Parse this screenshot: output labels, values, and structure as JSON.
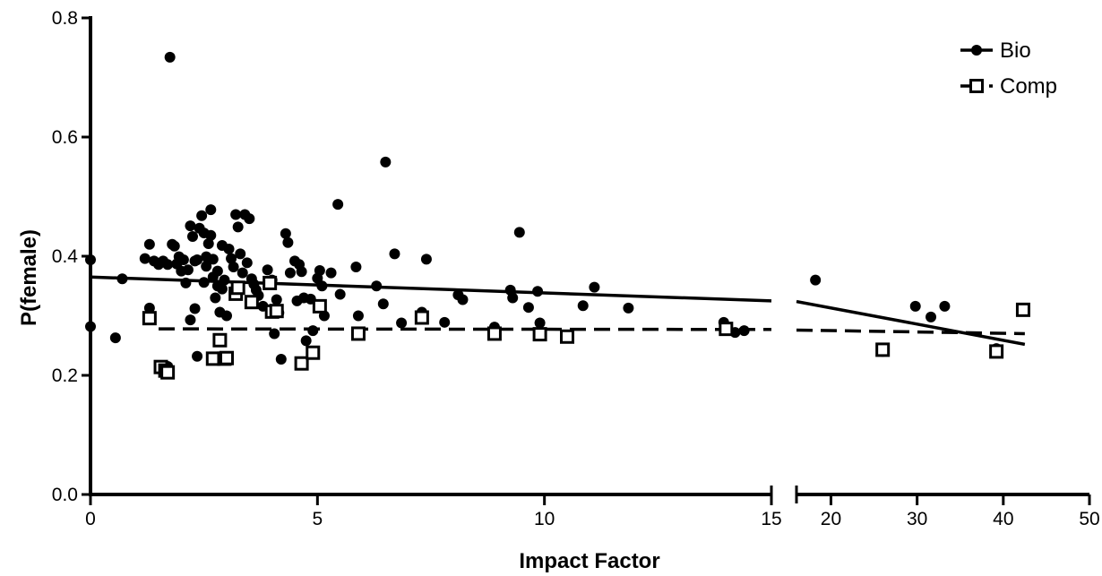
{
  "chart_data": {
    "type": "scatter",
    "xlabel": "Impact Factor",
    "ylabel": "P(female)",
    "ylim": [
      0,
      0.8
    ],
    "y_ticks": [
      "0.0",
      "0.2",
      "0.4",
      "0.6",
      "0.8"
    ],
    "x_axis_segments": [
      {
        "xlim": [
          0,
          15
        ],
        "ticks": [
          "0",
          "5",
          "10",
          "15"
        ]
      },
      {
        "xlim": [
          16,
          50
        ],
        "ticks": [
          "20",
          "30",
          "40",
          "50"
        ]
      }
    ],
    "axis_break": true,
    "legend_position": "top-right",
    "series": [
      {
        "name": "Bio",
        "marker": "filled-circle",
        "line_style": "solid",
        "color": "#000000",
        "points": [
          [
            0.0,
            0.394
          ],
          [
            0.0,
            0.282
          ],
          [
            0.55,
            0.263
          ],
          [
            0.7,
            0.362
          ],
          [
            1.2,
            0.396
          ],
          [
            1.3,
            0.42
          ],
          [
            1.3,
            0.313
          ],
          [
            1.4,
            0.392
          ],
          [
            1.5,
            0.386
          ],
          [
            1.6,
            0.392
          ],
          [
            1.7,
            0.386
          ],
          [
            1.7,
            0.215
          ],
          [
            1.75,
            0.734
          ],
          [
            1.8,
            0.42
          ],
          [
            1.85,
            0.417
          ],
          [
            1.9,
            0.387
          ],
          [
            1.95,
            0.399
          ],
          [
            2.0,
            0.375
          ],
          [
            2.05,
            0.394
          ],
          [
            2.1,
            0.355
          ],
          [
            2.15,
            0.377
          ],
          [
            2.2,
            0.451
          ],
          [
            2.25,
            0.433
          ],
          [
            2.3,
            0.392
          ],
          [
            2.35,
            0.394
          ],
          [
            2.4,
            0.447
          ],
          [
            2.45,
            0.468
          ],
          [
            2.5,
            0.439
          ],
          [
            2.55,
            0.399
          ],
          [
            2.6,
            0.395
          ],
          [
            2.2,
            0.293
          ],
          [
            2.3,
            0.312
          ],
          [
            2.35,
            0.232
          ],
          [
            2.5,
            0.356
          ],
          [
            2.55,
            0.383
          ],
          [
            2.6,
            0.421
          ],
          [
            2.65,
            0.435
          ],
          [
            2.65,
            0.478
          ],
          [
            2.7,
            0.395
          ],
          [
            2.7,
            0.365
          ],
          [
            2.75,
            0.33
          ],
          [
            2.8,
            0.375
          ],
          [
            2.8,
            0.35
          ],
          [
            2.85,
            0.306
          ],
          [
            2.9,
            0.418
          ],
          [
            2.9,
            0.345
          ],
          [
            2.95,
            0.36
          ],
          [
            3.0,
            0.3
          ],
          [
            3.05,
            0.412
          ],
          [
            3.1,
            0.396
          ],
          [
            3.15,
            0.382
          ],
          [
            3.2,
            0.47
          ],
          [
            3.25,
            0.449
          ],
          [
            3.3,
            0.404
          ],
          [
            3.35,
            0.372
          ],
          [
            3.4,
            0.47
          ],
          [
            3.45,
            0.389
          ],
          [
            3.5,
            0.463
          ],
          [
            3.55,
            0.362
          ],
          [
            3.6,
            0.353
          ],
          [
            3.65,
            0.343
          ],
          [
            3.7,
            0.334
          ],
          [
            3.8,
            0.316
          ],
          [
            3.9,
            0.377
          ],
          [
            4.0,
            0.36
          ],
          [
            4.05,
            0.27
          ],
          [
            4.1,
            0.327
          ],
          [
            4.15,
            0.305
          ],
          [
            4.2,
            0.227
          ],
          [
            4.3,
            0.438
          ],
          [
            4.35,
            0.423
          ],
          [
            4.4,
            0.372
          ],
          [
            4.5,
            0.392
          ],
          [
            4.55,
            0.325
          ],
          [
            4.6,
            0.386
          ],
          [
            4.65,
            0.374
          ],
          [
            4.7,
            0.33
          ],
          [
            4.75,
            0.258
          ],
          [
            4.85,
            0.328
          ],
          [
            4.9,
            0.275
          ],
          [
            5.0,
            0.363
          ],
          [
            5.05,
            0.376
          ],
          [
            5.1,
            0.35
          ],
          [
            5.15,
            0.3
          ],
          [
            5.3,
            0.372
          ],
          [
            5.45,
            0.487
          ],
          [
            5.5,
            0.336
          ],
          [
            5.85,
            0.382
          ],
          [
            5.9,
            0.3
          ],
          [
            6.3,
            0.35
          ],
          [
            6.45,
            0.32
          ],
          [
            6.5,
            0.558
          ],
          [
            6.7,
            0.404
          ],
          [
            6.85,
            0.288
          ],
          [
            7.3,
            0.306
          ],
          [
            7.4,
            0.395
          ],
          [
            7.8,
            0.289
          ],
          [
            8.1,
            0.335
          ],
          [
            8.2,
            0.327
          ],
          [
            8.9,
            0.281
          ],
          [
            9.25,
            0.343
          ],
          [
            9.3,
            0.33
          ],
          [
            9.45,
            0.44
          ],
          [
            9.65,
            0.314
          ],
          [
            9.85,
            0.341
          ],
          [
            9.9,
            0.288
          ],
          [
            10.85,
            0.317
          ],
          [
            11.1,
            0.348
          ],
          [
            11.85,
            0.313
          ],
          [
            13.95,
            0.289
          ],
          [
            14.2,
            0.272
          ],
          [
            14.4,
            0.275
          ],
          [
            18.2,
            0.36
          ],
          [
            26.0,
            0.24
          ],
          [
            29.8,
            0.316
          ],
          [
            31.6,
            0.298
          ],
          [
            33.2,
            0.316
          ],
          [
            39.2,
            0.245
          ],
          [
            42.3,
            0.31
          ]
        ],
        "fit_lines": [
          {
            "x": [
              0,
              15
            ],
            "y": [
              0.365,
              0.325
            ]
          },
          {
            "x": [
              16,
              42.5
            ],
            "y": [
              0.324,
              0.252
            ]
          }
        ]
      },
      {
        "name": "Comp",
        "marker": "open-square",
        "line_style": "dashed",
        "color": "#000000",
        "points": [
          [
            1.3,
            0.296
          ],
          [
            1.55,
            0.214
          ],
          [
            1.65,
            0.208
          ],
          [
            1.7,
            0.205
          ],
          [
            2.7,
            0.228
          ],
          [
            2.85,
            0.259
          ],
          [
            2.95,
            0.228
          ],
          [
            3.0,
            0.229
          ],
          [
            3.2,
            0.337
          ],
          [
            3.25,
            0.347
          ],
          [
            3.55,
            0.323
          ],
          [
            3.95,
            0.355
          ],
          [
            4.0,
            0.307
          ],
          [
            4.1,
            0.308
          ],
          [
            4.65,
            0.22
          ],
          [
            4.9,
            0.238
          ],
          [
            5.05,
            0.316
          ],
          [
            5.9,
            0.27
          ],
          [
            7.3,
            0.297
          ],
          [
            8.9,
            0.27
          ],
          [
            9.9,
            0.269
          ],
          [
            10.5,
            0.265
          ],
          [
            14.0,
            0.278
          ],
          [
            26.0,
            0.243
          ],
          [
            39.2,
            0.24
          ],
          [
            42.3,
            0.31
          ]
        ],
        "fit_lines": [
          {
            "x": [
              1.5,
              15
            ],
            "y": [
              0.278,
              0.277
            ]
          },
          {
            "x": [
              16,
              42.5
            ],
            "y": [
              0.276,
              0.27
            ]
          }
        ]
      }
    ]
  }
}
